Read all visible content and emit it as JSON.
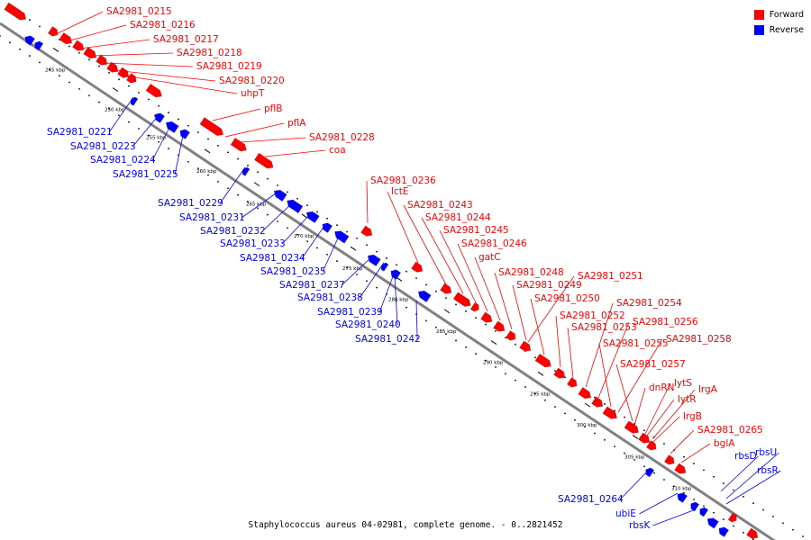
{
  "caption": "Staphylococcus aureus 04-02981, complete genome. - 0..2821452",
  "legend": [
    {
      "label": "Forward",
      "color": "#ff0000"
    },
    {
      "label": "Reverse",
      "color": "#0000ff"
    }
  ],
  "colors": {
    "forward": "#ff0000",
    "reverse": "#0000ff",
    "backbone": "#808080"
  },
  "scale_labels": [
    "245 kbp",
    "250 kbp",
    "255 kbp",
    "260 kbp",
    "265 kbp",
    "270 kbp",
    "275 kbp",
    "280 kbp",
    "285 kbp",
    "290 kbp",
    "295 kbp",
    "300 kbp",
    "305 kbp",
    "310 kbp"
  ],
  "forward_labels": [
    "SA2981_0215",
    "SA2981_0216",
    "SA2981_0217",
    "SA2981_0218",
    "SA2981_0219",
    "SA2981_0220",
    "uhpT",
    "pflB",
    "pflA",
    "SA2981_0228",
    "coa",
    "SA2981_0236",
    "lctE",
    "SA2981_0243",
    "SA2981_0244",
    "SA2981_0245",
    "SA2981_0246",
    "gatC",
    "SA2981_0248",
    "SA2981_0249",
    "SA2981_0250",
    "SA2981_0251",
    "SA2981_0252",
    "SA2981_0253",
    "SA2981_0254",
    "SA2981_0256",
    "SA2981_0255",
    "SA2981_0258",
    "SA2981_0257",
    "lytS",
    "dnRN",
    "lrgA",
    "lytR",
    "lrgB",
    "SA2981_0265",
    "bglA"
  ],
  "reverse_labels": [
    "SA2981_0221",
    "SA2981_0223",
    "SA2981_0224",
    "SA2981_0225",
    "SA2981_0229",
    "SA2981_0231",
    "SA2981_0232",
    "SA2981_0233",
    "SA2981_0234",
    "SA2981_0235",
    "SA2981_0237",
    "SA2981_0238",
    "SA2981_0239",
    "SA2981_0240",
    "SA2981_0242",
    "SA2981_0264",
    "ubiE",
    "rbsK",
    "rbsD",
    "rbsU",
    "rbsR"
  ]
}
